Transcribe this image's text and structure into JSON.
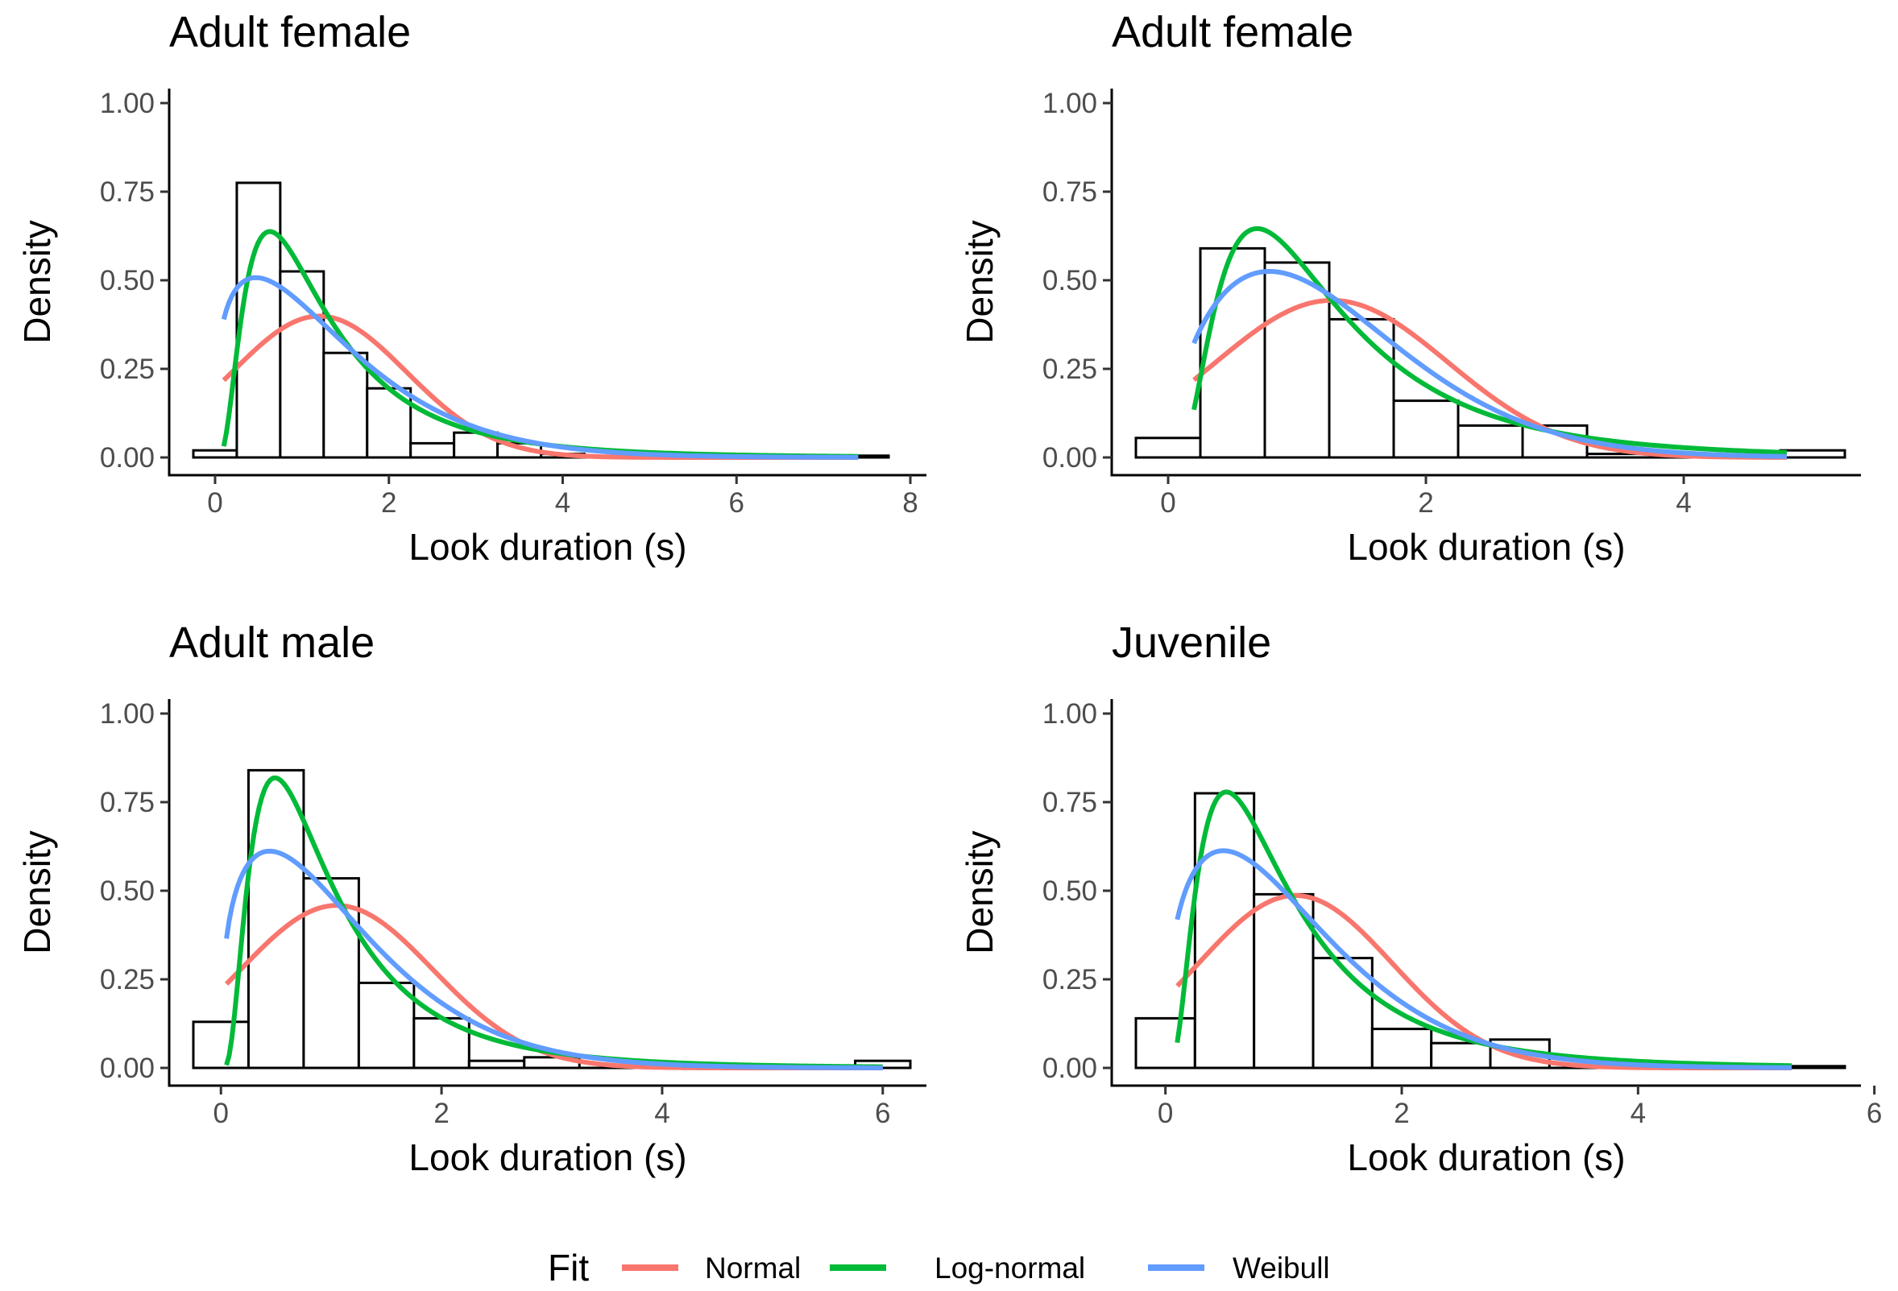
{
  "legend": {
    "title": "Fit",
    "items": [
      {
        "name": "Normal",
        "color": "#F8766D"
      },
      {
        "name": "Log-normal",
        "color": "#00BA38"
      },
      {
        "name": "Weibull",
        "color": "#619CFF"
      }
    ]
  },
  "chart_data": [
    {
      "type": "bar",
      "title": "Adult female",
      "xlabel": "Look duration (s)",
      "ylabel": "Density",
      "xlim": [
        -0.25,
        8
      ],
      "ylim": [
        0,
        1
      ],
      "xticks": [
        0,
        2,
        4,
        6,
        8
      ],
      "yticks": [
        0,
        0.25,
        0.5,
        0.75,
        1
      ],
      "ytick_labels": [
        "0.00",
        "0.25",
        "0.50",
        "0.75",
        "1.00"
      ],
      "bin_width": 0.5,
      "bins": [
        {
          "x0": -0.25,
          "x1": 0.25,
          "density": 0.02
        },
        {
          "x0": 0.25,
          "x1": 0.75,
          "density": 0.775
        },
        {
          "x0": 0.75,
          "x1": 1.25,
          "density": 0.525
        },
        {
          "x0": 1.25,
          "x1": 1.75,
          "density": 0.295
        },
        {
          "x0": 1.75,
          "x1": 2.25,
          "density": 0.195
        },
        {
          "x0": 2.25,
          "x1": 2.75,
          "density": 0.04
        },
        {
          "x0": 2.75,
          "x1": 3.25,
          "density": 0.07
        },
        {
          "x0": 3.25,
          "x1": 3.75,
          "density": 0.04
        },
        {
          "x0": 3.75,
          "x1": 4.25,
          "density": 0.01
        },
        {
          "x0": 4.25,
          "x1": 4.75,
          "density": 0.0
        },
        {
          "x0": 4.75,
          "x1": 5.25,
          "density": 0.0
        },
        {
          "x0": 5.25,
          "x1": 5.75,
          "density": 0.0
        },
        {
          "x0": 5.75,
          "x1": 6.25,
          "density": 0.0
        },
        {
          "x0": 6.25,
          "x1": 6.75,
          "density": 0.005
        },
        {
          "x0": 6.75,
          "x1": 7.25,
          "density": 0.0
        },
        {
          "x0": 7.25,
          "x1": 7.75,
          "density": 0.005
        }
      ],
      "fits": {
        "Normal": {
          "mean": 1.2,
          "sd": 1.0,
          "xmin": 0.1,
          "xmax": 7.4
        },
        "Log-normal": {
          "meanlog": 0.1,
          "sdlog": 0.75,
          "xmin": 0.1,
          "xmax": 7.4
        },
        "Weibull": {
          "shape": 1.3,
          "scale": 1.45,
          "xmin": 0.1,
          "xmax": 7.4
        }
      }
    },
    {
      "type": "bar",
      "title": "Adult female",
      "xlabel": "Look duration (s)",
      "ylabel": "Density",
      "xlim": [
        -0.25,
        5.25
      ],
      "ylim": [
        0,
        1
      ],
      "xticks": [
        0,
        2,
        4
      ],
      "yticks": [
        0,
        0.25,
        0.5,
        0.75,
        1
      ],
      "ytick_labels": [
        "0.00",
        "0.25",
        "0.50",
        "0.75",
        "1.00"
      ],
      "bin_width": 0.5,
      "bins": [
        {
          "x0": -0.25,
          "x1": 0.25,
          "density": 0.055
        },
        {
          "x0": 0.25,
          "x1": 0.75,
          "density": 0.59
        },
        {
          "x0": 0.75,
          "x1": 1.25,
          "density": 0.55
        },
        {
          "x0": 1.25,
          "x1": 1.75,
          "density": 0.39
        },
        {
          "x0": 1.75,
          "x1": 2.25,
          "density": 0.16
        },
        {
          "x0": 2.25,
          "x1": 2.75,
          "density": 0.09
        },
        {
          "x0": 2.75,
          "x1": 3.25,
          "density": 0.09
        },
        {
          "x0": 3.25,
          "x1": 3.75,
          "density": 0.01
        },
        {
          "x0": 3.75,
          "x1": 4.25,
          "density": 0.0
        },
        {
          "x0": 4.25,
          "x1": 4.75,
          "density": 0.0
        },
        {
          "x0": 4.75,
          "x1": 5.25,
          "density": 0.02
        }
      ],
      "fits": {
        "Normal": {
          "mean": 1.27,
          "sd": 0.9,
          "xmin": 0.2,
          "xmax": 4.8
        },
        "Log-normal": {
          "meanlog": 0.12,
          "sdlog": 0.7,
          "xmin": 0.2,
          "xmax": 4.8
        },
        "Weibull": {
          "shape": 1.6,
          "scale": 1.45,
          "xmin": 0.2,
          "xmax": 4.8
        }
      }
    },
    {
      "type": "bar",
      "title": "Adult male",
      "xlabel": "Look duration (s)",
      "ylabel": "Density",
      "xlim": [
        -0.25,
        6.25
      ],
      "ylim": [
        0,
        1
      ],
      "xticks": [
        0,
        2,
        4,
        6
      ],
      "yticks": [
        0,
        0.25,
        0.5,
        0.75,
        1
      ],
      "ytick_labels": [
        "0.00",
        "0.25",
        "0.50",
        "0.75",
        "1.00"
      ],
      "bin_width": 0.5,
      "bins": [
        {
          "x0": -0.25,
          "x1": 0.25,
          "density": 0.13
        },
        {
          "x0": 0.25,
          "x1": 0.75,
          "density": 0.84
        },
        {
          "x0": 0.75,
          "x1": 1.25,
          "density": 0.535
        },
        {
          "x0": 1.25,
          "x1": 1.75,
          "density": 0.24
        },
        {
          "x0": 1.75,
          "x1": 2.25,
          "density": 0.14
        },
        {
          "x0": 2.25,
          "x1": 2.75,
          "density": 0.02
        },
        {
          "x0": 2.75,
          "x1": 3.25,
          "density": 0.03
        },
        {
          "x0": 3.25,
          "x1": 3.75,
          "density": 0.0
        },
        {
          "x0": 3.75,
          "x1": 4.25,
          "density": 0.0
        },
        {
          "x0": 4.25,
          "x1": 4.75,
          "density": 0.0
        },
        {
          "x0": 4.75,
          "x1": 5.25,
          "density": 0.0
        },
        {
          "x0": 5.25,
          "x1": 5.75,
          "density": 0.0
        },
        {
          "x0": 5.75,
          "x1": 6.25,
          "density": 0.02
        }
      ],
      "fits": {
        "Normal": {
          "mean": 1.05,
          "sd": 0.87,
          "xmin": 0.05,
          "xmax": 6.0
        },
        "Log-normal": {
          "meanlog": -0.15,
          "sdlog": 0.75,
          "xmin": 0.05,
          "xmax": 6.0
        },
        "Weibull": {
          "shape": 1.35,
          "scale": 1.2,
          "xmin": 0.05,
          "xmax": 6.0
        }
      }
    },
    {
      "type": "bar",
      "title": "Juvenile",
      "xlabel": "Look duration (s)",
      "ylabel": "Density",
      "xlim": [
        -0.25,
        5.75
      ],
      "ylim": [
        0,
        1
      ],
      "xticks": [
        0,
        2,
        4,
        6
      ],
      "yticks": [
        0,
        0.25,
        0.5,
        0.75,
        1
      ],
      "ytick_labels": [
        "0.00",
        "0.25",
        "0.50",
        "0.75",
        "1.00"
      ],
      "bin_width": 0.5,
      "bins": [
        {
          "x0": -0.25,
          "x1": 0.25,
          "density": 0.14
        },
        {
          "x0": 0.25,
          "x1": 0.75,
          "density": 0.775
        },
        {
          "x0": 0.75,
          "x1": 1.25,
          "density": 0.49
        },
        {
          "x0": 1.25,
          "x1": 1.75,
          "density": 0.31
        },
        {
          "x0": 1.75,
          "x1": 2.25,
          "density": 0.11
        },
        {
          "x0": 2.25,
          "x1": 2.75,
          "density": 0.07
        },
        {
          "x0": 2.75,
          "x1": 3.25,
          "density": 0.08
        },
        {
          "x0": 3.25,
          "x1": 3.75,
          "density": 0.0
        },
        {
          "x0": 3.75,
          "x1": 4.25,
          "density": 0.0
        },
        {
          "x0": 4.25,
          "x1": 4.75,
          "density": 0.0
        },
        {
          "x0": 4.75,
          "x1": 5.25,
          "density": 0.0
        },
        {
          "x0": 5.25,
          "x1": 5.75,
          "density": 0.005
        }
      ],
      "fits": {
        "Normal": {
          "mean": 1.1,
          "sd": 0.82,
          "xmin": 0.1,
          "xmax": 5.3
        },
        "Log-normal": {
          "meanlog": -0.1,
          "sdlog": 0.75,
          "xmin": 0.1,
          "xmax": 5.3
        },
        "Weibull": {
          "shape": 1.4,
          "scale": 1.2,
          "xmin": 0.1,
          "xmax": 5.3
        }
      }
    }
  ]
}
